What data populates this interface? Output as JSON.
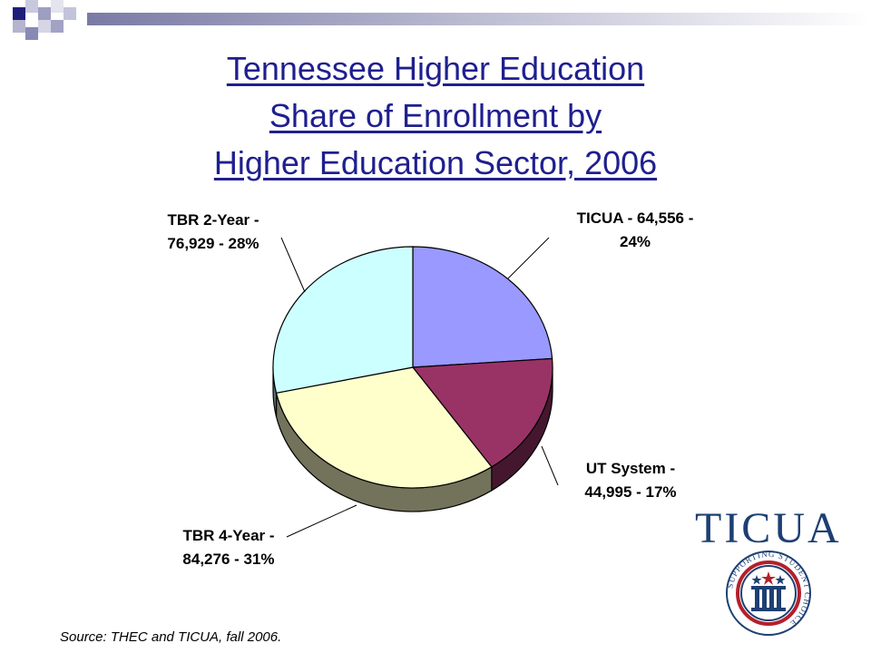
{
  "title": {
    "line1": "Tennessee Higher Education",
    "line2": "Share of Enrollment by",
    "line3": "Higher Education Sector, 2006"
  },
  "chart_data": {
    "type": "pie",
    "title": "Tennessee Higher Education Share of Enrollment by Higher Education Sector, 2006",
    "slices": [
      {
        "name": "TICUA",
        "value": 64556,
        "percent": 24,
        "color": "#9999ff",
        "label_lines": [
          "TICUA - 64,556 -",
          "24%"
        ]
      },
      {
        "name": "UT System",
        "value": 44995,
        "percent": 17,
        "color": "#993366",
        "label_lines": [
          "UT System -",
          "44,995 - 17%"
        ]
      },
      {
        "name": "TBR 4-Year",
        "value": 84276,
        "percent": 31,
        "color": "#ffffcc",
        "label_lines": [
          "TBR 4-Year -",
          "84,276 - 31%"
        ]
      },
      {
        "name": "TBR 2-Year",
        "value": 76929,
        "percent": 28,
        "color": "#ccffff",
        "label_lines": [
          "TBR 2-Year -",
          "76,929 - 28%"
        ]
      }
    ]
  },
  "source": "Source: THEC and TICUA, fall 2006.",
  "logo": {
    "wordmark": "TICUA",
    "ring_text": "SUPPORTING STUDENT CHOICE",
    "colors": {
      "navy": "#1d3f73",
      "red": "#b3202c"
    }
  },
  "colors": {
    "title": "#1f1f8f",
    "accent": "#1e1e7a"
  }
}
